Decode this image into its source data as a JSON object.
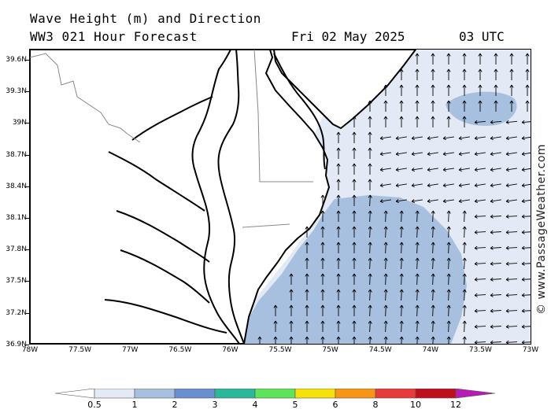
{
  "header": {
    "title": "Wave Height (m) and Direction",
    "model": "WW3 021 Hour Forecast",
    "date": "Fri 02 May 2025",
    "time": "03 UTC"
  },
  "watermark": "© www.PassageWeather.com",
  "map": {
    "lon_range": [
      -78,
      -73
    ],
    "lat_range": [
      36.7,
      38.7
    ],
    "y_axis_labels": [
      "39.6N",
      "39.3N",
      "39N",
      "38.7N",
      "38.4N",
      "38.1N",
      "37.8N",
      "37.5N",
      "37.2N",
      "36.9N"
    ],
    "x_axis_labels": [
      "78W",
      "77.5W",
      "77W",
      "76.5W",
      "76W",
      "75.5W",
      "75W",
      "74.5W",
      "74W",
      "73.5W",
      "73W"
    ],
    "land_color": "#ffffff",
    "coast_color": "#000000"
  },
  "legend": {
    "labels": [
      "0.5",
      "1",
      "2",
      "3",
      "4",
      "5",
      "6",
      "8",
      "10",
      "12"
    ],
    "colors": [
      "#e3e9f5",
      "#a7c0e0",
      "#6a8fcf",
      "#2ab79a",
      "#5ee35a",
      "#f5e20c",
      "#f79516",
      "#e73a3a",
      "#bd0f1c",
      "#b81bb3"
    ]
  }
}
